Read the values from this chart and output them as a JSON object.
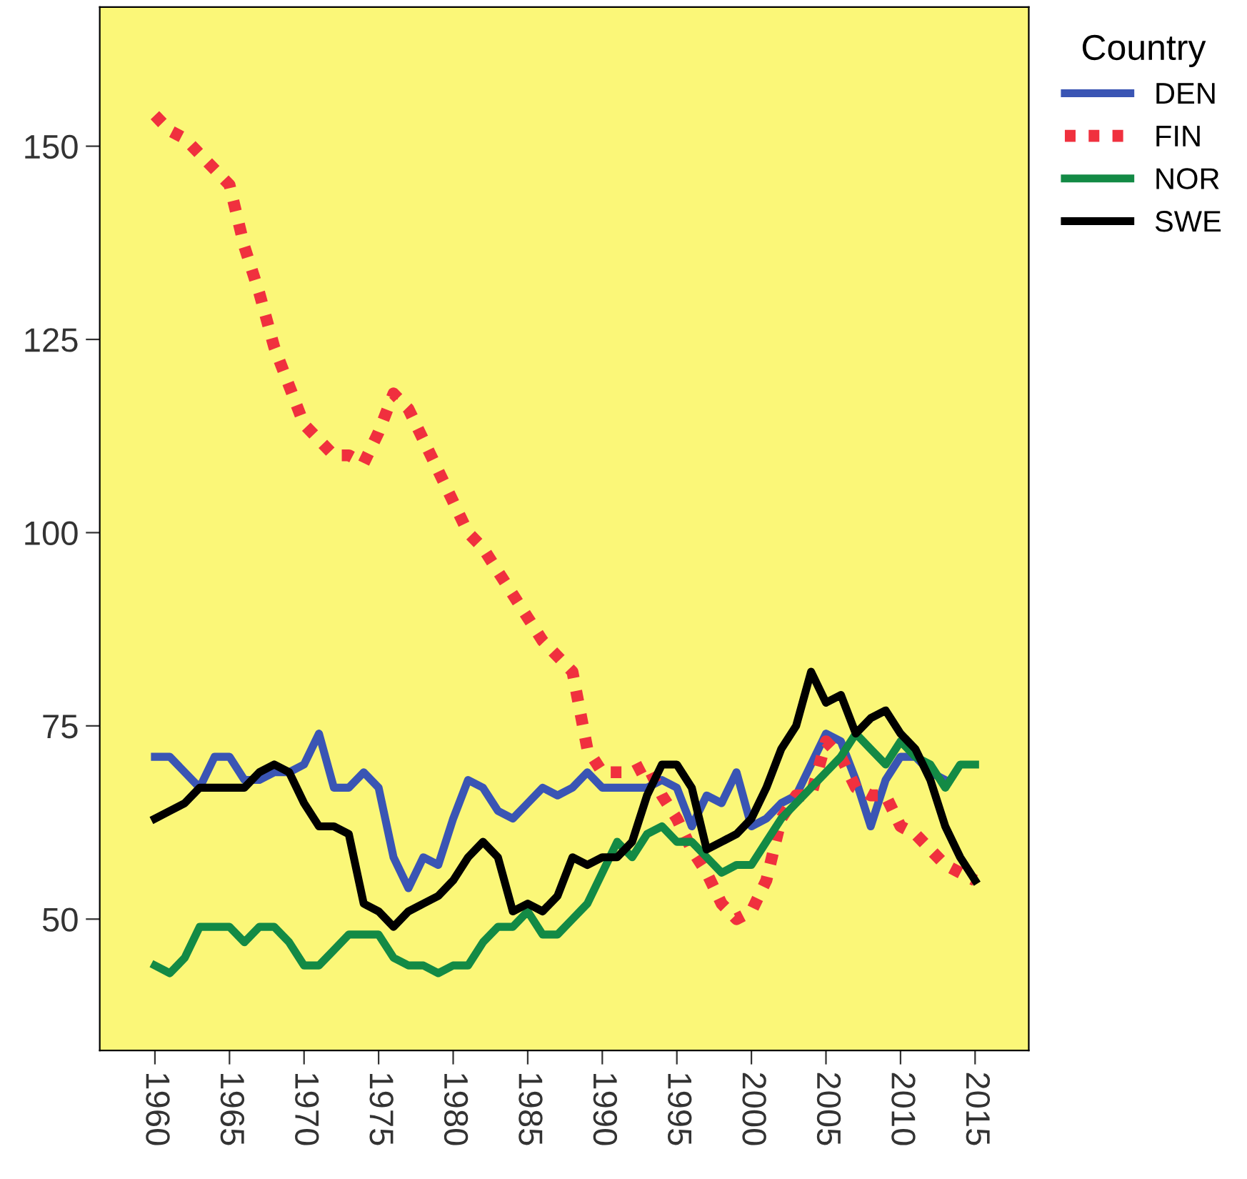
{
  "chart_data": {
    "type": "line",
    "legend_title": "Country",
    "legend": "top right",
    "grid": false,
    "marker": "none",
    "x": [
      1960,
      1961,
      1962,
      1963,
      1964,
      1965,
      1966,
      1967,
      1968,
      1969,
      1970,
      1971,
      1972,
      1973,
      1974,
      1975,
      1976,
      1977,
      1978,
      1979,
      1980,
      1981,
      1982,
      1983,
      1984,
      1985,
      1986,
      1987,
      1988,
      1989,
      1990,
      1991,
      1992,
      1993,
      1994,
      1995,
      1996,
      1997,
      1998,
      1999,
      2000,
      2001,
      2002,
      2003,
      2004,
      2005,
      2006,
      2007,
      2008,
      2009,
      2010,
      2011,
      2012,
      2013,
      2014,
      2015
    ],
    "xlim": [
      1956.3,
      2018.6
    ],
    "xticks": [
      1960,
      1965,
      1970,
      1975,
      1980,
      1985,
      1990,
      1995,
      2000,
      2005,
      2010,
      2015
    ],
    "ylim": [
      33,
      168
    ],
    "yticks": [
      50,
      75,
      100,
      125,
      150
    ],
    "series": [
      {
        "name": "DEN",
        "color": "#3a55b4",
        "line_style": "solid",
        "values": [
          71,
          71,
          69,
          67,
          71,
          71,
          68,
          68,
          69,
          69,
          70,
          74,
          67,
          67,
          69,
          67,
          58,
          54,
          58,
          57,
          63,
          68,
          67,
          64,
          63,
          65,
          67,
          66,
          67,
          69,
          67,
          67,
          67,
          67,
          68,
          67,
          62,
          66,
          65,
          69,
          62,
          63,
          65,
          66,
          70,
          74,
          73,
          68,
          62,
          68,
          71,
          71,
          69,
          68,
          null,
          null
        ]
      },
      {
        "name": "FIN",
        "color": "#f0303e",
        "line_style": "dotted",
        "values": [
          154,
          152,
          151,
          149,
          147,
          145,
          137,
          131,
          124,
          119,
          114,
          112,
          110,
          110,
          109,
          113,
          118,
          116,
          112,
          108,
          104,
          100,
          98,
          95,
          92,
          89,
          86,
          84,
          82,
          72,
          69,
          69,
          69,
          70,
          66,
          63,
          59,
          56,
          52,
          50,
          51,
          55,
          63,
          66,
          66,
          73,
          71,
          67,
          66,
          66,
          62,
          61,
          59,
          57,
          56,
          55
        ]
      },
      {
        "name": "NOR",
        "color": "#138a45",
        "line_style": "solid",
        "values": [
          44,
          43,
          45,
          49,
          49,
          49,
          47,
          49,
          49,
          47,
          44,
          44,
          46,
          48,
          48,
          48,
          45,
          44,
          44,
          43,
          44,
          44,
          47,
          49,
          49,
          51,
          48,
          48,
          50,
          52,
          56,
          60,
          58,
          61,
          62,
          60,
          60,
          58,
          56,
          57,
          57,
          60,
          63,
          65,
          67,
          69,
          71,
          74,
          72,
          70,
          73,
          71,
          70,
          67,
          70,
          70
        ]
      },
      {
        "name": "SWE",
        "color": "#000000",
        "line_style": "solid",
        "values": [
          63,
          64,
          65,
          67,
          67,
          67,
          67,
          69,
          70,
          69,
          65,
          62,
          62,
          61,
          52,
          51,
          49,
          51,
          52,
          53,
          55,
          58,
          60,
          58,
          51,
          52,
          51,
          53,
          58,
          57,
          58,
          58,
          60,
          66,
          70,
          70,
          67,
          59,
          60,
          61,
          63,
          67,
          72,
          75,
          82,
          78,
          79,
          74,
          76,
          77,
          74,
          72,
          68,
          62,
          58,
          55
        ]
      }
    ]
  }
}
